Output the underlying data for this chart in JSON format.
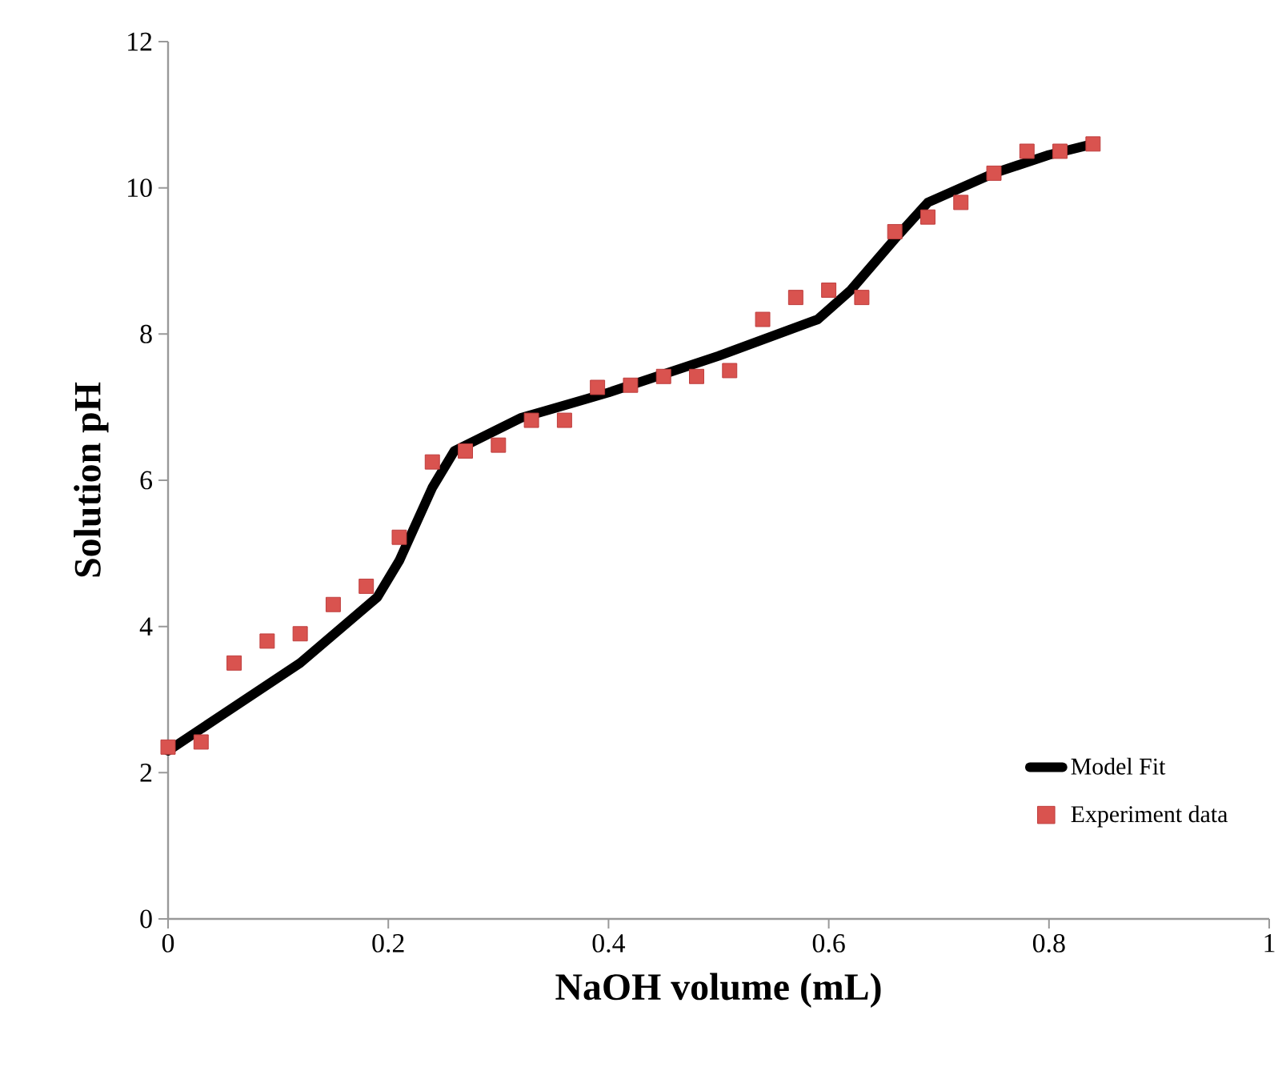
{
  "chart_data": {
    "type": "line",
    "xlabel": "NaOH volume (mL)",
    "ylabel": "Solution pH",
    "xlim": [
      0,
      1
    ],
    "xticks": [
      0,
      0.2,
      0.4,
      0.6,
      0.8,
      1
    ],
    "ylim": [
      0,
      12
    ],
    "yticks": [
      0,
      2,
      4,
      6,
      8,
      10,
      12
    ],
    "grid": false,
    "legend": "bottom right",
    "series": [
      {
        "name": "Model Fit",
        "color": "#000000",
        "marker": "none",
        "line_style": "solid",
        "x": [
          0,
          0.05,
          0.12,
          0.19,
          0.21,
          0.24,
          0.26,
          0.32,
          0.4,
          0.5,
          0.59,
          0.62,
          0.66,
          0.69,
          0.75,
          0.8,
          0.84
        ],
        "values": [
          2.3,
          2.8,
          3.5,
          4.4,
          4.9,
          5.9,
          6.4,
          6.85,
          7.2,
          7.7,
          8.2,
          8.6,
          9.3,
          9.8,
          10.2,
          10.45,
          10.6
        ]
      },
      {
        "name": "Experiment data",
        "type": "scatter",
        "color": "#d9534f",
        "marker": "square",
        "x": [
          0,
          0.03,
          0.06,
          0.09,
          0.12,
          0.15,
          0.18,
          0.21,
          0.24,
          0.27,
          0.3,
          0.33,
          0.36,
          0.39,
          0.42,
          0.45,
          0.48,
          0.51,
          0.54,
          0.57,
          0.6,
          0.63,
          0.66,
          0.69,
          0.72,
          0.75,
          0.78,
          0.81,
          0.84
        ],
        "values": [
          2.35,
          2.42,
          3.5,
          3.8,
          3.9,
          4.3,
          4.55,
          5.22,
          6.25,
          6.4,
          6.48,
          6.82,
          6.82,
          7.27,
          7.3,
          7.42,
          7.42,
          7.5,
          8.2,
          8.5,
          8.6,
          8.5,
          9.4,
          9.6,
          9.8,
          10.2,
          10.5,
          10.5,
          10.6
        ]
      }
    ]
  }
}
